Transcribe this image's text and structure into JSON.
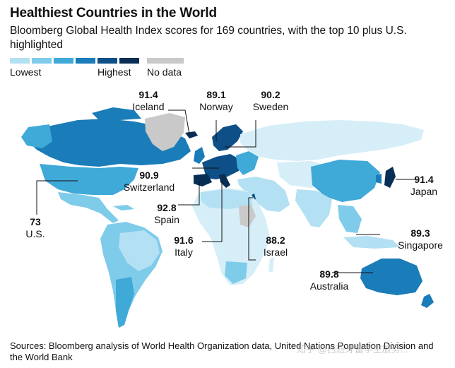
{
  "header": {
    "title": "Healthiest Countries in the World",
    "subtitle": "Bloomberg Global Health Index scores for 169 countries, with the top 10 plus U.S. highlighted"
  },
  "legend": {
    "lowest_label": "Lowest",
    "highest_label": "Highest",
    "nodata_label": "No data",
    "scale_colors": [
      "#d6eef8",
      "#b3e0f3",
      "#7fcbea",
      "#3fa9d8",
      "#1a7cb8",
      "#0d4f86",
      "#082e55"
    ],
    "nodata_color": "#c9c9c9"
  },
  "map_colors": {
    "ocean": "#ffffff",
    "very_light": "#d6eef8",
    "light": "#b3e0f3",
    "medium": "#7fcbea",
    "mid_dark": "#3fa9d8",
    "dark": "#1a7cb8",
    "darker": "#0d4f86",
    "darkest": "#082e55",
    "no_data": "#c9c9c9"
  },
  "callouts": [
    {
      "id": "iceland",
      "score": "91.4",
      "country": "Iceland"
    },
    {
      "id": "norway",
      "score": "89.1",
      "country": "Norway"
    },
    {
      "id": "sweden",
      "score": "90.2",
      "country": "Sweden"
    },
    {
      "id": "switzerland",
      "score": "90.9",
      "country": "Switzerland"
    },
    {
      "id": "spain",
      "score": "92.8",
      "country": "Spain"
    },
    {
      "id": "italy",
      "score": "91.6",
      "country": "Italy"
    },
    {
      "id": "israel",
      "score": "88.2",
      "country": "Israel"
    },
    {
      "id": "us",
      "score": "73",
      "country": "U.S."
    },
    {
      "id": "japan",
      "score": "91.4",
      "country": "Japan"
    },
    {
      "id": "singapore",
      "score": "89.3",
      "country": "Singapore"
    },
    {
      "id": "australia",
      "score": "89.8",
      "country": "Australia"
    }
  ],
  "footer": {
    "source": "Sources: Bloomberg analysis of World Health Organization data, United Nations Population Division and the World Bank",
    "watermark": "知乎 @西班牙留学生服务..."
  }
}
